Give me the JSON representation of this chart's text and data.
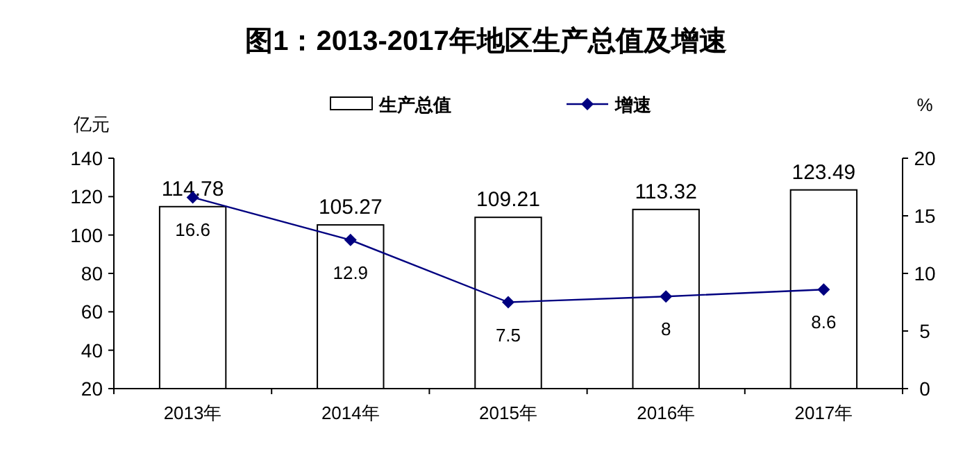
{
  "chart_data": {
    "type": "bar",
    "title": "图1：2013-2017年地区生产总值及增速",
    "ylabel": "亿元",
    "y2label": "%",
    "categories": [
      "2013年",
      "2014年",
      "2015年",
      "2016年",
      "2017年"
    ],
    "series": [
      {
        "name": "生产总值",
        "color": "#ffffff",
        "values": [
          114.78,
          105.27,
          109.21,
          113.32,
          123.49
        ]
      },
      {
        "type": "line",
        "name": "增速",
        "color": "#000080",
        "axis": "y2",
        "marker": "diamond",
        "values": [
          16.6,
          12.9,
          7.5,
          8,
          8.6
        ]
      }
    ],
    "ylim": [
      20,
      140
    ],
    "yticks": [
      20,
      40,
      60,
      80,
      100,
      120,
      140
    ],
    "y2lim": [
      0,
      20
    ],
    "y2ticks": [
      0,
      5,
      10,
      15,
      20
    ],
    "data_labels": true,
    "legend": "top",
    "grid": false
  }
}
